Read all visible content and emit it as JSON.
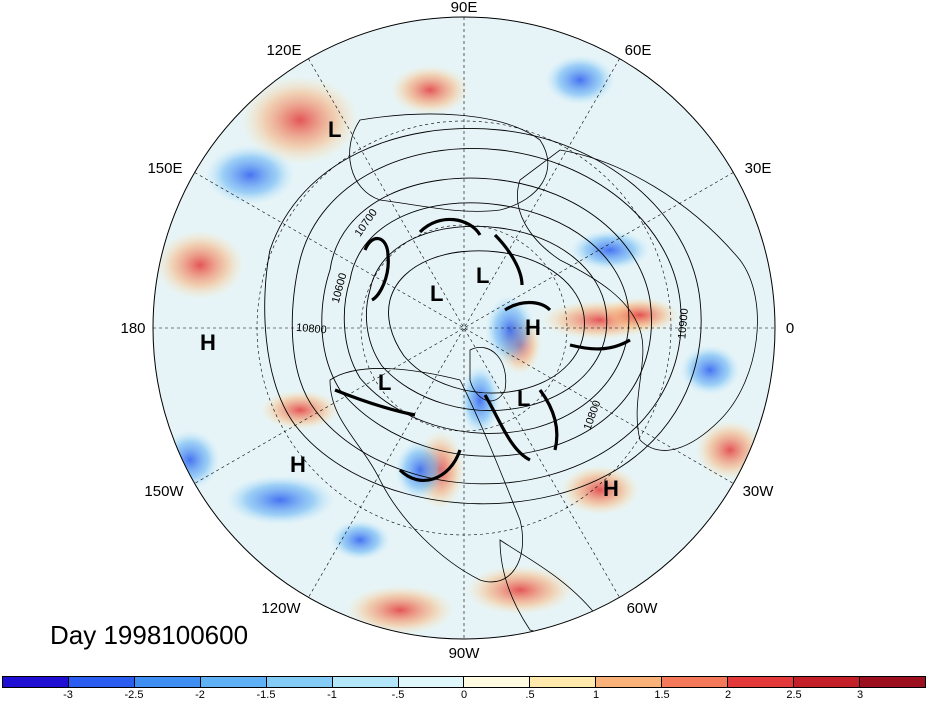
{
  "title": "Day 1998100600",
  "map": {
    "projection": "polar-stereographic-north",
    "lon_labels": [
      "90E",
      "60E",
      "30E",
      "0",
      "30W",
      "60W",
      "90W",
      "120W",
      "150W",
      "180",
      "150E",
      "120E"
    ],
    "contour_labels": [
      "10700",
      "10600",
      "10800",
      "10900",
      "10800"
    ],
    "pressure_centers": [
      {
        "type": "H",
        "region": "north-pacific-west"
      },
      {
        "type": "H",
        "region": "north-pacific-east"
      },
      {
        "type": "H",
        "region": "north-atlantic"
      },
      {
        "type": "H",
        "region": "europe"
      },
      {
        "type": "L",
        "region": "siberia"
      },
      {
        "type": "L",
        "region": "arctic-east"
      },
      {
        "type": "L",
        "region": "arctic-west"
      },
      {
        "type": "L",
        "region": "alaska"
      },
      {
        "type": "L",
        "region": "greenland"
      }
    ],
    "land_color": "#ffffff",
    "coast_color": "#000000"
  },
  "colorbar": {
    "labels": [
      "-3",
      "-2.5",
      "-2",
      "-1.5",
      "-1",
      "-.5",
      "0",
      ".5",
      "1",
      "1.5",
      "2",
      "2.5",
      "3"
    ],
    "colors": [
      "#1e0fd2",
      "#2a5cf0",
      "#3f8ef2",
      "#5fb0f4",
      "#84ccf6",
      "#b3e6f8",
      "#dff6fb",
      "#fffbe0",
      "#ffe9ad",
      "#f8b27a",
      "#f3795a",
      "#e3393a",
      "#c31f28",
      "#9b0f1e"
    ]
  }
}
